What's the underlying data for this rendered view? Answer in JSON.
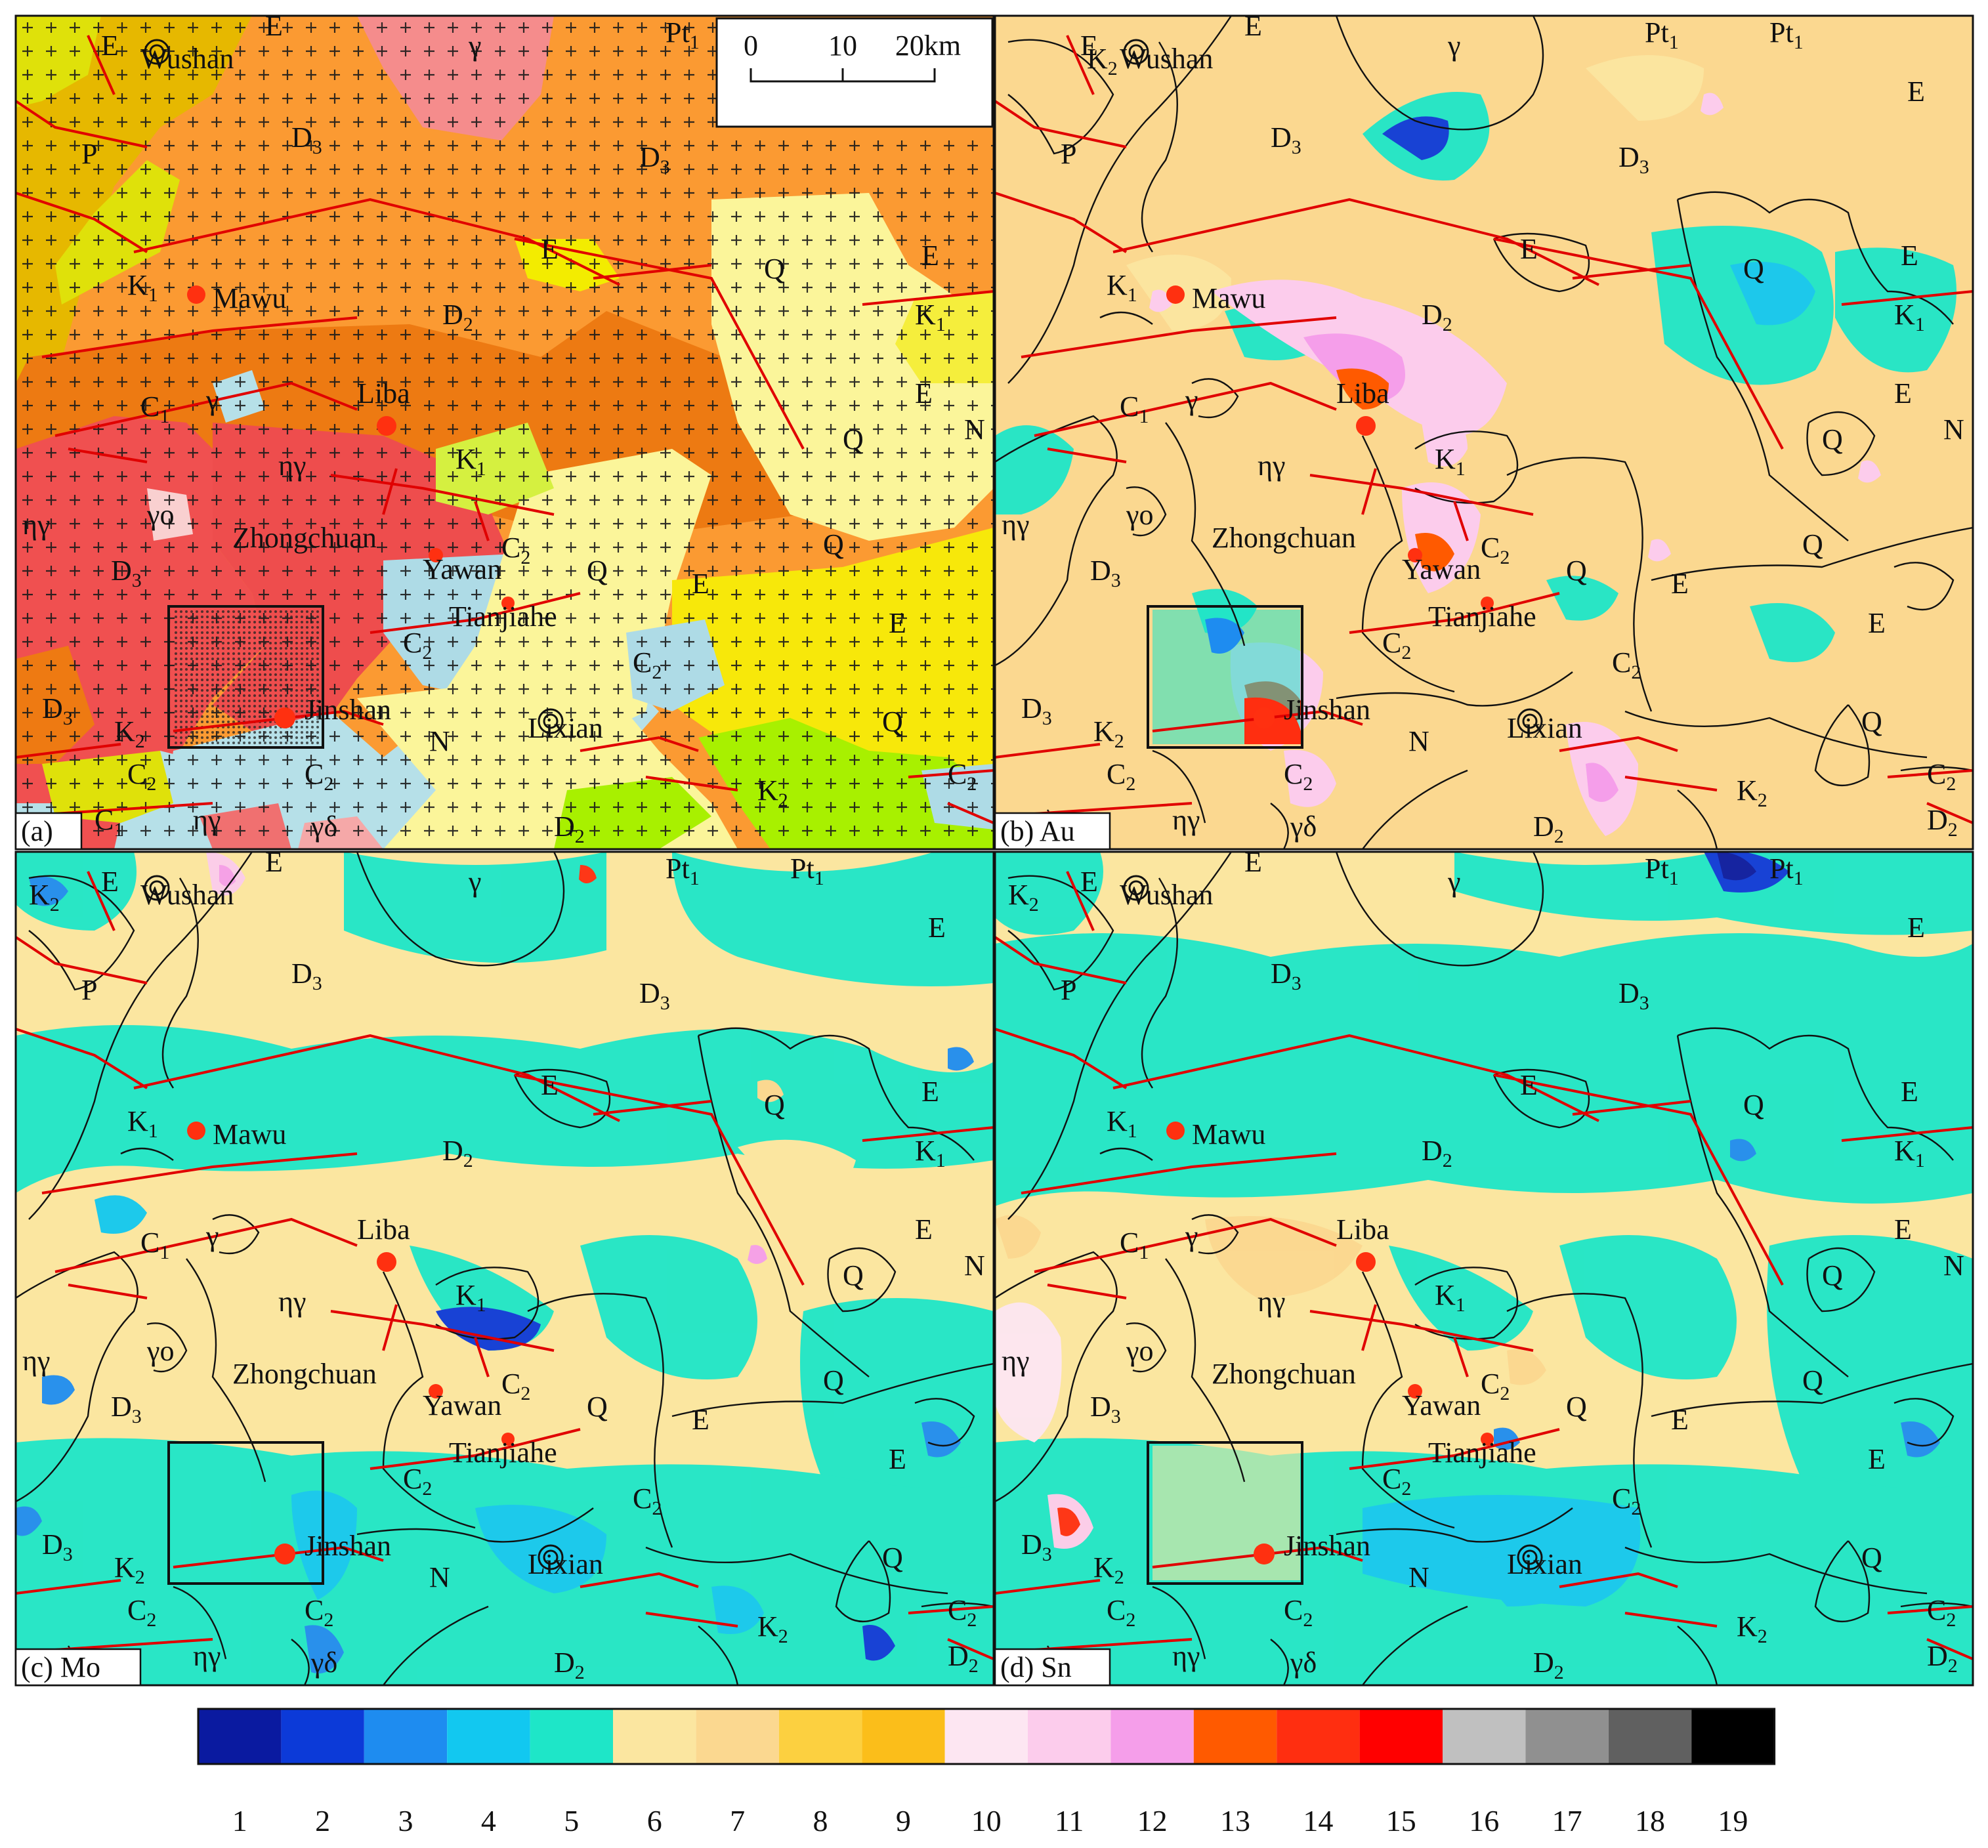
{
  "panels": [
    {
      "id": "a",
      "tag": "(a)"
    },
    {
      "id": "b",
      "tag": "(b) Au"
    },
    {
      "id": "c",
      "tag": "(c) Mo"
    },
    {
      "id": "d",
      "tag": "(d) Sn"
    }
  ],
  "scale_bar": {
    "ticks": [
      "0",
      "10",
      "20km"
    ]
  },
  "places": {
    "wushan": "Wushan",
    "mawu": "Mawu",
    "liba": "Liba",
    "zhongchuan": "Zhongchuan",
    "yawan": "Yawan",
    "tianjiahe": "Tianjiahe",
    "jinshan": "Jinshan",
    "lixian": "Lixian"
  },
  "units": {
    "E": "E",
    "P": "P",
    "Q": "Q",
    "N": "N",
    "K": "K",
    "D": "D",
    "C": "C",
    "Pt": "Pt",
    "sub1": "1",
    "sub2": "2",
    "sub3": "3",
    "gamma": "γ",
    "eta_gamma": "ηγ",
    "gamma_o": "γo",
    "gamma_delta": "γδ"
  },
  "colorbar": {
    "labels": [
      "1",
      "2",
      "3",
      "4",
      "5",
      "6",
      "7",
      "8",
      "9",
      "10",
      "11",
      "12",
      "13",
      "14",
      "15",
      "16",
      "17",
      "18",
      "19"
    ],
    "colors": [
      "#0a1aa0",
      "#0c3ad8",
      "#1e8cf0",
      "#12c8f0",
      "#1ee6c8",
      "#fbe6a0",
      "#fbd890",
      "#fcd040",
      "#fbbe1a",
      "#fde6f2",
      "#fcccec",
      "#f59eea",
      "#ff5a00",
      "#ff2e10",
      "#ff0000",
      "#c0c0c0",
      "#909090",
      "#606060",
      "#000000"
    ]
  }
}
